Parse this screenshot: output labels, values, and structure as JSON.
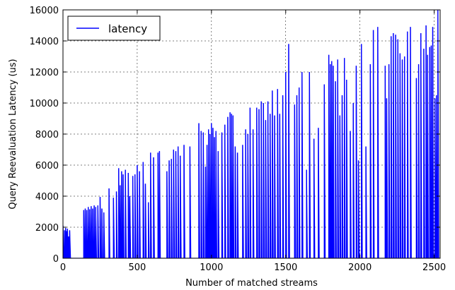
{
  "chart_data": {
    "type": "line",
    "xlabel": "Number of matched streams",
    "ylabel": "Query Reevaluation Latency (us)",
    "xlim": [
      0,
      2540
    ],
    "ylim": [
      0,
      16000
    ],
    "x_ticks": [
      0,
      500,
      1000,
      1500,
      2000,
      2500
    ],
    "y_ticks": [
      0,
      2000,
      4000,
      6000,
      8000,
      10000,
      12000,
      14000,
      16000
    ],
    "x_tick_labels": [
      "0",
      "500",
      "1000",
      "1500",
      "2000",
      "2500"
    ],
    "y_tick_labels": [
      "0",
      "2000",
      "4000",
      "6000",
      "8000",
      "10000",
      "12000",
      "14000",
      "16000"
    ],
    "grid": true,
    "legend_position": "top-left",
    "series": [
      {
        "name": "latency",
        "color": "#0000ff",
        "points": [
          [
            0,
            2100
          ],
          [
            10,
            1800
          ],
          [
            18,
            1950
          ],
          [
            25,
            1750
          ],
          [
            30,
            1900
          ],
          [
            38,
            1400
          ],
          [
            45,
            1800
          ],
          [
            140,
            3100
          ],
          [
            150,
            3200
          ],
          [
            160,
            3100
          ],
          [
            170,
            3300
          ],
          [
            180,
            3150
          ],
          [
            190,
            3350
          ],
          [
            200,
            3200
          ],
          [
            210,
            3400
          ],
          [
            220,
            3300
          ],
          [
            235,
            3400
          ],
          [
            250,
            3950
          ],
          [
            262,
            3200
          ],
          [
            275,
            2950
          ],
          [
            310,
            4500
          ],
          [
            340,
            3900
          ],
          [
            360,
            4300
          ],
          [
            375,
            5800
          ],
          [
            385,
            4700
          ],
          [
            395,
            5600
          ],
          [
            405,
            5400
          ],
          [
            420,
            5700
          ],
          [
            440,
            5500
          ],
          [
            450,
            4000
          ],
          [
            470,
            5300
          ],
          [
            485,
            5400
          ],
          [
            500,
            6000
          ],
          [
            515,
            5600
          ],
          [
            540,
            6200
          ],
          [
            555,
            4800
          ],
          [
            575,
            3600
          ],
          [
            590,
            6800
          ],
          [
            610,
            6500
          ],
          [
            640,
            6800
          ],
          [
            650,
            6900
          ],
          [
            700,
            5600
          ],
          [
            715,
            6300
          ],
          [
            730,
            6400
          ],
          [
            745,
            7000
          ],
          [
            760,
            6900
          ],
          [
            775,
            7200
          ],
          [
            790,
            6600
          ],
          [
            815,
            7300
          ],
          [
            855,
            7200
          ],
          [
            915,
            8700
          ],
          [
            930,
            8200
          ],
          [
            945,
            8100
          ],
          [
            960,
            5900
          ],
          [
            970,
            7300
          ],
          [
            980,
            8300
          ],
          [
            990,
            8000
          ],
          [
            1000,
            8700
          ],
          [
            1010,
            8400
          ],
          [
            1020,
            7800
          ],
          [
            1030,
            8200
          ],
          [
            1045,
            6900
          ],
          [
            1070,
            8100
          ],
          [
            1090,
            8600
          ],
          [
            1110,
            9100
          ],
          [
            1125,
            9400
          ],
          [
            1135,
            9300
          ],
          [
            1145,
            9200
          ],
          [
            1160,
            7200
          ],
          [
            1175,
            6800
          ],
          [
            1210,
            7300
          ],
          [
            1230,
            8300
          ],
          [
            1245,
            8000
          ],
          [
            1260,
            9700
          ],
          [
            1280,
            8300
          ],
          [
            1305,
            9700
          ],
          [
            1320,
            9600
          ],
          [
            1335,
            10100
          ],
          [
            1350,
            10000
          ],
          [
            1365,
            8900
          ],
          [
            1380,
            10100
          ],
          [
            1395,
            9300
          ],
          [
            1410,
            10800
          ],
          [
            1425,
            9200
          ],
          [
            1445,
            10900
          ],
          [
            1460,
            9300
          ],
          [
            1480,
            10500
          ],
          [
            1500,
            12000
          ],
          [
            1520,
            13800
          ],
          [
            1560,
            9900
          ],
          [
            1575,
            10500
          ],
          [
            1590,
            11000
          ],
          [
            1610,
            12000
          ],
          [
            1640,
            5700
          ],
          [
            1660,
            12000
          ],
          [
            1690,
            7700
          ],
          [
            1720,
            8400
          ],
          [
            1760,
            11200
          ],
          [
            1790,
            13100
          ],
          [
            1800,
            12500
          ],
          [
            1810,
            12700
          ],
          [
            1820,
            12400
          ],
          [
            1835,
            11400
          ],
          [
            1850,
            12800
          ],
          [
            1865,
            9200
          ],
          [
            1880,
            10500
          ],
          [
            1895,
            12900
          ],
          [
            1910,
            11500
          ],
          [
            1935,
            8200
          ],
          [
            1955,
            10000
          ],
          [
            1975,
            12400
          ],
          [
            1990,
            6300
          ],
          [
            2010,
            13800
          ],
          [
            2040,
            7200
          ],
          [
            2070,
            12500
          ],
          [
            2090,
            14700
          ],
          [
            2120,
            14900
          ],
          [
            2170,
            12400
          ],
          [
            2180,
            10300
          ],
          [
            2195,
            12500
          ],
          [
            2210,
            14300
          ],
          [
            2225,
            14500
          ],
          [
            2240,
            14400
          ],
          [
            2255,
            14100
          ],
          [
            2270,
            13200
          ],
          [
            2285,
            12800
          ],
          [
            2300,
            13000
          ],
          [
            2320,
            14600
          ],
          [
            2340,
            14900
          ],
          [
            2380,
            11600
          ],
          [
            2395,
            12500
          ],
          [
            2410,
            14500
          ],
          [
            2430,
            13500
          ],
          [
            2445,
            15000
          ],
          [
            2455,
            13100
          ],
          [
            2470,
            13600
          ],
          [
            2480,
            13700
          ],
          [
            2490,
            14900
          ],
          [
            2505,
            10300
          ],
          [
            2515,
            10500
          ],
          [
            2525,
            16000
          ]
        ]
      }
    ]
  }
}
